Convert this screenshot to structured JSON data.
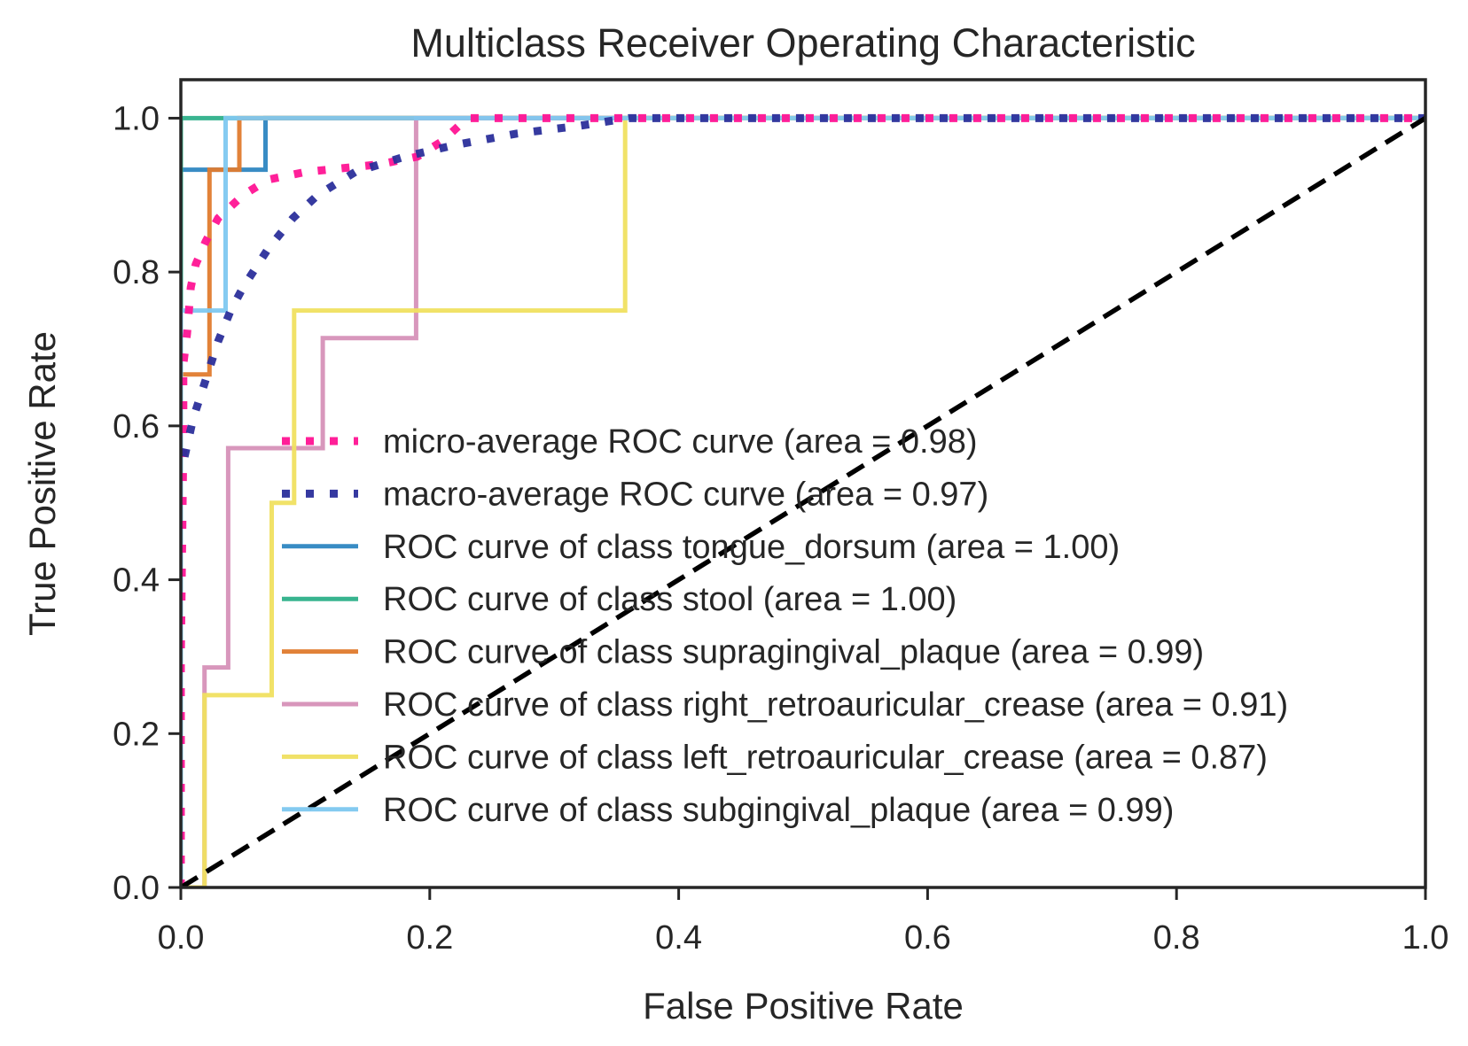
{
  "chart_data": {
    "type": "line",
    "title": "Multiclass Receiver Operating Characteristic",
    "xlabel": "False Positive Rate",
    "ylabel": "True Positive Rate",
    "xlim": [
      0.0,
      1.0
    ],
    "ylim": [
      0.0,
      1.05
    ],
    "xticks": [
      "0.0",
      "0.2",
      "0.4",
      "0.6",
      "0.8",
      "1.0"
    ],
    "yticks": [
      "0.0",
      "0.2",
      "0.4",
      "0.6",
      "0.8",
      "1.0"
    ],
    "xtick_values": [
      0.0,
      0.2,
      0.4,
      0.6,
      0.8,
      1.0
    ],
    "ytick_values": [
      0.0,
      0.2,
      0.4,
      0.6,
      0.8,
      1.0
    ],
    "grid": false,
    "legend_position": "lower right",
    "series": [
      {
        "name": "micro-average ROC curve (area = 0.98)",
        "color": "#ff1493",
        "style": "dotted",
        "x": [
          0.0,
          0.0,
          0.002,
          0.002,
          0.005,
          0.008,
          0.012,
          0.02,
          0.03,
          0.05,
          0.07,
          0.1,
          0.13,
          0.16,
          0.19,
          0.21,
          0.23,
          0.3,
          0.4,
          0.5,
          0.6,
          0.7,
          0.8,
          0.9,
          1.0
        ],
        "y": [
          0.0,
          0.3,
          0.58,
          0.68,
          0.72,
          0.78,
          0.81,
          0.84,
          0.87,
          0.9,
          0.92,
          0.93,
          0.935,
          0.94,
          0.95,
          0.97,
          1.0,
          1.0,
          1.0,
          1.0,
          1.0,
          1.0,
          1.0,
          1.0,
          1.0
        ]
      },
      {
        "name": "macro-average ROC curve (area = 0.97)",
        "color": "#2b2f9b",
        "style": "dotted",
        "x": [
          0.003,
          0.01,
          0.02,
          0.03,
          0.04,
          0.05,
          0.07,
          0.09,
          0.11,
          0.14,
          0.18,
          0.22,
          0.27,
          0.32,
          0.36,
          0.45,
          0.6,
          0.8,
          1.0
        ],
        "y": [
          0.56,
          0.61,
          0.66,
          0.71,
          0.75,
          0.78,
          0.83,
          0.87,
          0.9,
          0.93,
          0.95,
          0.965,
          0.98,
          0.99,
          1.0,
          1.0,
          1.0,
          1.0,
          1.0
        ]
      },
      {
        "name": "ROC curve of class tongue_dorsum (area = 1.00)",
        "color": "#2e86c1",
        "style": "solid",
        "x": [
          0.0,
          0.0,
          0.068,
          0.068,
          1.0
        ],
        "y": [
          0.0,
          0.933,
          0.933,
          1.0,
          1.0
        ]
      },
      {
        "name": "ROC curve of class stool (area = 1.00)",
        "color": "#2eb08a",
        "style": "solid",
        "x": [
          0.0,
          0.0,
          0.034,
          1.0
        ],
        "y": [
          0.0,
          1.0,
          1.0,
          1.0
        ]
      },
      {
        "name": "ROC curve of class supragingival_plaque (area = 0.99)",
        "color": "#e07b2e",
        "style": "solid",
        "x": [
          0.0,
          0.0,
          0.023,
          0.023,
          0.047,
          0.047,
          1.0
        ],
        "y": [
          0.0,
          0.667,
          0.667,
          0.933,
          0.933,
          1.0,
          1.0
        ]
      },
      {
        "name": "ROC curve of class right_retroauricular_crease (area = 0.91)",
        "color": "#d691b8",
        "style": "solid",
        "x": [
          0.0,
          0.0,
          0.019,
          0.019,
          0.038,
          0.038,
          0.114,
          0.114,
          0.189,
          0.189,
          1.0
        ],
        "y": [
          0.0,
          0.0,
          0.0,
          0.286,
          0.286,
          0.571,
          0.571,
          0.714,
          0.714,
          1.0,
          1.0
        ]
      },
      {
        "name": "ROC curve of class left_retroauricular_crease (area = 0.87)",
        "color": "#f0e060",
        "style": "solid",
        "x": [
          0.0,
          0.019,
          0.019,
          0.073,
          0.073,
          0.091,
          0.091,
          0.357,
          0.357,
          1.0
        ],
        "y": [
          0.0,
          0.0,
          0.25,
          0.25,
          0.5,
          0.5,
          0.75,
          0.75,
          1.0,
          1.0
        ]
      },
      {
        "name": "ROC curve of class subgingival_plaque (area = 0.99)",
        "color": "#7ec8f0",
        "style": "solid",
        "x": [
          0.0,
          0.0,
          0.036,
          0.036,
          1.0
        ],
        "y": [
          0.0,
          0.75,
          0.75,
          1.0,
          1.0
        ]
      },
      {
        "name": "",
        "color": "#000000",
        "style": "dashed",
        "x": [
          0.0,
          1.0
        ],
        "y": [
          0.0,
          1.0
        ]
      }
    ]
  }
}
